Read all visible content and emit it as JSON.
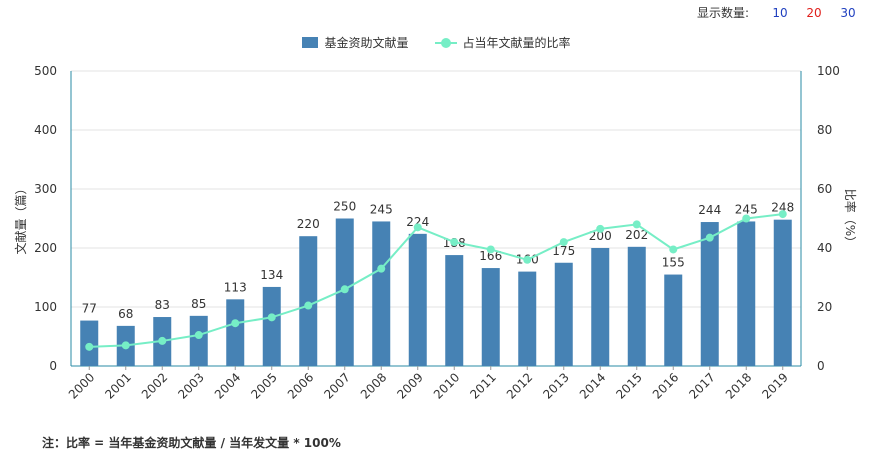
{
  "display_count": {
    "label": "显示数量:",
    "options": [
      {
        "text": "10",
        "color": "#1f3fbf"
      },
      {
        "text": "20",
        "color": "#e0201c"
      },
      {
        "text": "30",
        "color": "#1f3fbf"
      }
    ]
  },
  "note": "注：比率 = 当年基金资助文献量 / 当年发文量 * 100%",
  "colors": {
    "bar": "#4682b4",
    "line": "#76eec6",
    "axis_right": "#2a8ba5"
  },
  "chart_data": {
    "type": "bar",
    "categories": [
      "2000",
      "2001",
      "2002",
      "2003",
      "2004",
      "2005",
      "2006",
      "2007",
      "2008",
      "2009",
      "2010",
      "2011",
      "2012",
      "2013",
      "2014",
      "2015",
      "2016",
      "2017",
      "2018",
      "2019"
    ],
    "series": [
      {
        "name": "基金资助文献量",
        "type": "bar",
        "axis": "left",
        "values": [
          77,
          68,
          83,
          85,
          113,
          134,
          220,
          250,
          245,
          224,
          188,
          166,
          160,
          175,
          200,
          202,
          155,
          244,
          245,
          248
        ]
      },
      {
        "name": "占当年文献量的比率",
        "type": "line",
        "axis": "right",
        "values": [
          6.5,
          7,
          8.5,
          10.5,
          14.5,
          16.5,
          20.5,
          26,
          33,
          47,
          42,
          39.5,
          36,
          42,
          46.5,
          48,
          39.5,
          43.5,
          50,
          51.5
        ]
      }
    ],
    "ylabel": "文献量（篇）",
    "y2label": "比率（%）",
    "ylim": [
      0,
      500
    ],
    "y2lim": [
      0,
      100
    ],
    "yticks": [
      0,
      100,
      200,
      300,
      400,
      500
    ],
    "y2ticks": [
      0,
      20,
      40,
      60,
      80,
      100
    ],
    "grid": true,
    "legend_position": "top-center"
  }
}
